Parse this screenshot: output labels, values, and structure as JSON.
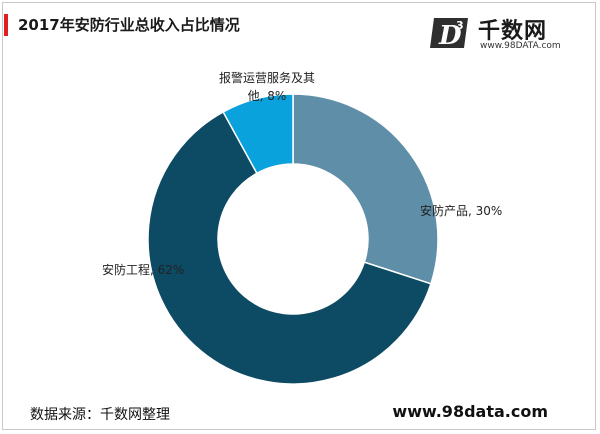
{
  "header": {
    "title": "2017年安防行业总收入占比情况",
    "accent_color": "#e02020"
  },
  "brand": {
    "logo_letter": "D",
    "logo_superscript": "3",
    "name": "千数网",
    "url": "www.98DATA.com"
  },
  "chart_data": {
    "type": "pie",
    "donut": true,
    "start_angle_deg": 0,
    "direction": "clockwise",
    "slices": [
      {
        "label_line1": "安防产品, 30%",
        "label_line2": "",
        "value": 30,
        "color": "#5e8ea8"
      },
      {
        "label_line1": "安防工程, 62%",
        "label_line2": "",
        "value": 62,
        "color": "#0d4a63"
      },
      {
        "label_line1": "报警运营服务及其",
        "label_line2": "他, 8%",
        "value": 8,
        "color": "#0aa2dd"
      }
    ]
  },
  "footer": {
    "source": "数据来源：千数网整理",
    "url": "www.98data.com"
  }
}
